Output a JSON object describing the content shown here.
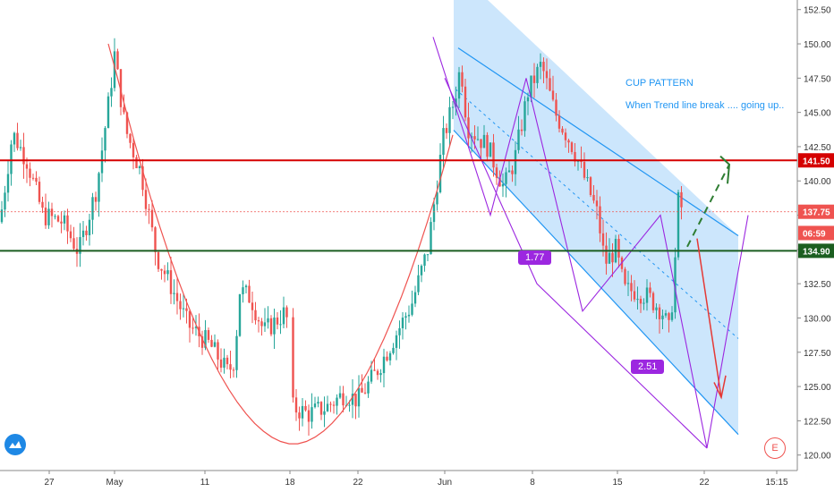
{
  "chart_data": {
    "type": "candlestick",
    "symbol_note": "",
    "price_axis": {
      "ticks": [
        "152.50",
        "150.00",
        "147.50",
        "145.00",
        "142.50",
        "140.00",
        "137.50",
        "135.00",
        "132.50",
        "130.00",
        "127.50",
        "125.00",
        "122.50",
        "120.00"
      ],
      "range": [
        119.0,
        153.2
      ]
    },
    "time_axis": {
      "ticks": [
        "27",
        "May",
        "11",
        "18",
        "22",
        "Jun",
        "8",
        "15",
        "22",
        "15:15"
      ]
    },
    "series": [
      {
        "segment": "late-apr",
        "open": 137.0,
        "start_close": 142.5
      },
      {
        "segment": "april-may peak",
        "high": 149.5
      },
      {
        "segment": "may bottom",
        "low": 121.0
      },
      {
        "segment": "june peak",
        "high": 149.5
      },
      {
        "segment": "june pullback low",
        "low": 128.5
      },
      {
        "segment": "last",
        "close": 137.75
      }
    ],
    "price_labels": [
      {
        "text": "141.50",
        "value": 141.5,
        "color": "#d50000"
      },
      {
        "text": "137.75",
        "value": 137.75,
        "color": "#ef5350"
      },
      {
        "text": "06:59",
        "value": 136.2,
        "color": "#ef5350"
      },
      {
        "text": "134.90",
        "value": 134.9,
        "color": "#1b5e20"
      }
    ],
    "horizontal_lines": [
      {
        "value": 141.5,
        "color": "#d50000",
        "style": "solid"
      },
      {
        "value": 137.75,
        "color": "#ef5350",
        "style": "dotted"
      },
      {
        "value": 134.9,
        "color": "#1b5e20",
        "style": "solid"
      }
    ],
    "annotations": [
      {
        "text": "CUP PATTERN"
      },
      {
        "text": "When Trend line break .... going up.."
      }
    ],
    "wave_labels": [
      {
        "text": "1.77"
      },
      {
        "text": "2.51"
      }
    ],
    "colors": {
      "up": "#26a69a",
      "down": "#ef5350",
      "channel": "#bbdefb",
      "channel_edge": "#2196f3",
      "cup": "#ef5350",
      "wave": "#9c27e0"
    }
  },
  "badges": {
    "e": "E"
  }
}
